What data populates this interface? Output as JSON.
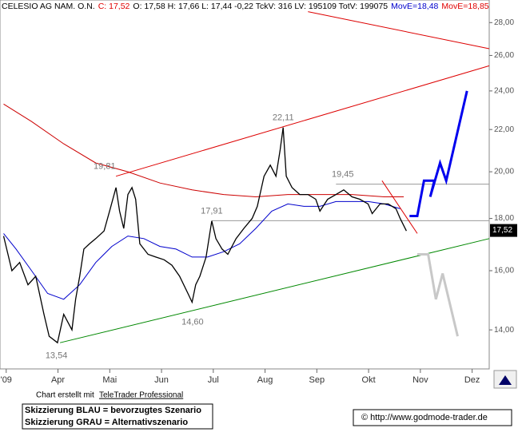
{
  "chart_data": {
    "type": "line",
    "header": [
      {
        "text": "CELESIO AG NAM. O.N.",
        "color": "#000000"
      },
      {
        "text": "C: 17,52",
        "color": "#e00000"
      },
      {
        "text": "O: 17,58 H: 17,66 L: 17,44 -0,22 TckV: 316 LV: 195109 TotV: 199075",
        "color": "#000000"
      },
      {
        "text": "MovE=18,48",
        "color": "#0000cc"
      },
      {
        "text": "MovE=18,85",
        "color": "#e00000"
      }
    ],
    "log_scale": true,
    "xlim": [
      2.88,
      12.33
    ],
    "xticks": [
      {
        "value": 3,
        "label": "'09"
      },
      {
        "value": 4,
        "label": "Apr"
      },
      {
        "value": 5,
        "label": "Mai"
      },
      {
        "value": 6,
        "label": "Jun"
      },
      {
        "value": 7,
        "label": "Jul"
      },
      {
        "value": 8,
        "label": "Aug"
      },
      {
        "value": 9,
        "label": "Sep"
      },
      {
        "value": 10,
        "label": "Okt"
      },
      {
        "value": 11,
        "label": "Nov"
      },
      {
        "value": 12,
        "label": "Dez"
      }
    ],
    "ylim": [
      12.82,
      29.2
    ],
    "yticks": [
      {
        "value": 14,
        "label": "14,00"
      },
      {
        "value": 16,
        "label": "16,00"
      },
      {
        "value": 18,
        "label": "18,00"
      },
      {
        "value": 20,
        "label": "20,00"
      },
      {
        "value": 22,
        "label": "22,00"
      },
      {
        "value": 24,
        "label": "24,00"
      },
      {
        "value": 26,
        "label": "26,00"
      },
      {
        "value": 28,
        "label": "28,00"
      }
    ],
    "last_price": {
      "value": 17.52,
      "label": "17,52"
    },
    "series": [
      {
        "color": "#999999",
        "width": 1,
        "x": [
          9.37,
          12.33
        ],
        "values": [
          19.45,
          19.45
        ]
      },
      {
        "color": "#999999",
        "width": 1,
        "x": [
          6.97,
          12.33
        ],
        "values": [
          17.91,
          17.91
        ]
      },
      {
        "color": "#cc0000",
        "width": 1,
        "x": [
          2.95,
          3.49,
          4.11,
          4.73,
          5.35,
          5.97,
          6.59,
          7.2,
          7.82,
          8.44,
          9.06,
          9.68,
          10.3,
          10.68
        ],
        "values": [
          23.3,
          22.4,
          21.3,
          20.4,
          20.0,
          19.5,
          19.2,
          19.0,
          18.9,
          19.0,
          19.0,
          19.0,
          18.9,
          18.9
        ]
      },
      {
        "color": "#0000cc",
        "width": 1,
        "x": [
          2.95,
          3.19,
          3.49,
          3.8,
          4.11,
          4.42,
          4.73,
          5.04,
          5.35,
          5.66,
          5.97,
          6.28,
          6.59,
          6.89,
          7.2,
          7.51,
          7.82,
          8.13,
          8.44,
          8.75,
          9.06,
          9.37,
          9.68,
          9.99,
          10.3,
          10.61
        ],
        "values": [
          17.4,
          16.8,
          16.0,
          15.2,
          15.0,
          15.5,
          16.3,
          16.9,
          17.3,
          17.2,
          16.9,
          16.8,
          16.5,
          16.5,
          16.7,
          17.0,
          17.6,
          18.3,
          18.6,
          18.5,
          18.5,
          18.7,
          18.7,
          18.7,
          18.6,
          18.4
        ]
      },
      {
        "color": "#000000",
        "width": 1.3,
        "x": [
          2.95,
          3.11,
          3.26,
          3.42,
          3.57,
          3.73,
          3.83,
          3.99,
          4.11,
          4.27,
          4.34,
          4.42,
          4.5,
          4.61,
          4.73,
          4.89,
          5.01,
          5.12,
          5.19,
          5.27,
          5.35,
          5.43,
          5.5,
          5.58,
          5.74,
          5.89,
          6.05,
          6.2,
          6.35,
          6.51,
          6.59,
          6.66,
          6.74,
          6.86,
          6.97,
          7.05,
          7.17,
          7.28,
          7.44,
          7.59,
          7.75,
          7.85,
          7.98,
          8.1,
          8.21,
          8.29,
          8.35,
          8.41,
          8.52,
          8.67,
          8.83,
          8.98,
          9.06,
          9.21,
          9.37,
          9.52,
          9.68,
          9.83,
          9.99,
          10.07,
          10.22,
          10.38,
          10.53,
          10.61,
          10.73
        ],
        "values": [
          17.3,
          16.0,
          16.3,
          15.5,
          15.8,
          14.5,
          13.8,
          13.6,
          14.5,
          14.0,
          15.0,
          15.8,
          16.8,
          17.0,
          17.2,
          17.5,
          18.4,
          19.3,
          18.3,
          17.6,
          19.0,
          19.3,
          18.8,
          17.0,
          16.6,
          16.5,
          16.4,
          16.2,
          15.8,
          15.2,
          14.9,
          15.5,
          15.8,
          16.5,
          17.9,
          17.2,
          16.8,
          16.6,
          17.2,
          17.6,
          18.0,
          18.5,
          19.8,
          20.3,
          19.8,
          21.0,
          22.1,
          19.8,
          19.3,
          19.0,
          19.0,
          18.8,
          18.3,
          18.8,
          19.0,
          19.2,
          18.9,
          18.8,
          18.6,
          18.2,
          18.6,
          18.6,
          18.4,
          18.0,
          17.5
        ]
      },
      {
        "color": "#008800",
        "width": 1,
        "x": [
          4.04,
          12.33
        ],
        "values": [
          13.6,
          17.2
        ]
      },
      {
        "color": "#dd0000",
        "width": 1,
        "x": [
          5.12,
          12.33
        ],
        "values": [
          19.8,
          25.4
        ]
      },
      {
        "color": "#dd0000",
        "width": 1,
        "x": [
          8.83,
          12.33
        ],
        "values": [
          28.7,
          26.4
        ]
      },
      {
        "color": "#dd0000",
        "width": 1,
        "x": [
          10.26,
          10.94
        ],
        "values": [
          19.6,
          17.4
        ]
      },
      {
        "color": "#0000ee",
        "width": 3,
        "x": [
          10.79,
          10.94,
          11.07,
          11.27,
          11.19,
          11.38,
          11.5,
          11.9
        ],
        "values": [
          18.1,
          18.1,
          19.6,
          19.6,
          18.9,
          20.4,
          19.6,
          24.0
        ]
      },
      {
        "color": "#c8c8c8",
        "width": 3,
        "x": [
          10.94,
          11.15,
          11.3,
          11.43,
          11.72
        ],
        "values": [
          16.6,
          16.6,
          15.0,
          15.9,
          13.8
        ]
      }
    ],
    "annotations": [
      {
        "label": "22,11",
        "value": 22.11,
        "x": 8.35,
        "pos": "above"
      },
      {
        "label": "19,81",
        "value": 19.81,
        "x": 4.9,
        "pos": "above"
      },
      {
        "label": "19,45",
        "value": 19.45,
        "x": 9.5,
        "pos": "above"
      },
      {
        "label": "17,91",
        "value": 17.91,
        "x": 6.97,
        "pos": "above"
      },
      {
        "label": "14,60",
        "value": 14.6,
        "x": 6.6,
        "pos": "below"
      },
      {
        "label": "13,54",
        "value": 13.54,
        "x": 3.97,
        "pos": "below"
      }
    ]
  },
  "footer": {
    "credit_prefix": "Chart erstellt mit",
    "credit_link": "TeleTrader Professional",
    "legend_lines": [
      "Skizzierung BLAU = bevorzugtes Szenario",
      "Skizzierung GRAU = Alternativszenario"
    ],
    "url": "© http://www.godmode-trader.de"
  }
}
